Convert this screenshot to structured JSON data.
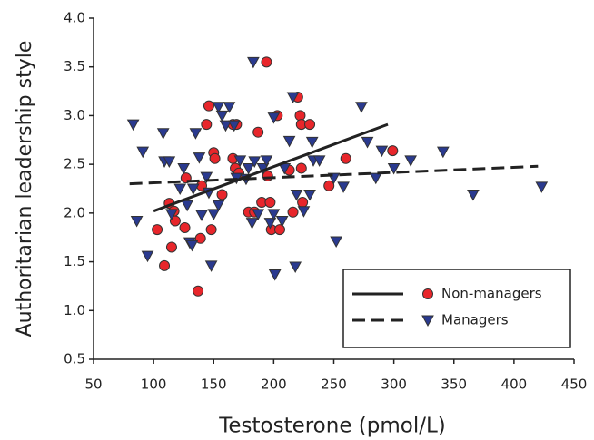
{
  "chart_data": {
    "type": "scatter",
    "x_label": "Testosterone (pmol/L)",
    "y_label": "Authoritarian leadership style",
    "xlim": [
      50,
      450
    ],
    "xticks": [
      50,
      100,
      150,
      200,
      250,
      300,
      350,
      400,
      450
    ],
    "ylim": [
      0.5,
      4.0
    ],
    "yticks": [
      0.5,
      {
        "value": 1,
        "label": "1.0"
      },
      1.5,
      {
        "value": 2,
        "label": "2.0"
      },
      2.5,
      {
        "value": 3,
        "label": "3.0"
      },
      3.5,
      {
        "value": 4,
        "label": "4.0"
      }
    ],
    "legend": "lower right",
    "series": [
      {
        "name": "Non-managers",
        "color": "#e8262b",
        "marker": "circle",
        "line_style": "solid",
        "x": [
          103,
          109,
          113,
          115,
          117,
          118,
          126,
          127,
          137,
          139,
          140,
          144,
          146,
          148,
          150,
          151,
          157,
          166,
          166,
          168,
          169,
          171,
          179,
          184,
          187,
          190,
          194,
          195,
          197,
          198,
          203,
          205,
          213,
          216,
          220,
          222,
          223,
          223,
          224,
          230,
          246,
          260,
          299
        ],
        "values": [
          1.83,
          1.46,
          2.1,
          1.65,
          2.02,
          1.92,
          1.85,
          2.36,
          1.2,
          1.74,
          2.28,
          2.91,
          3.1,
          1.83,
          2.62,
          2.56,
          2.19,
          2.56,
          2.91,
          2.46,
          2.91,
          2.41,
          2.01,
          2.01,
          2.83,
          2.11,
          3.55,
          2.38,
          2.11,
          1.83,
          3.0,
          1.83,
          2.44,
          2.01,
          3.19,
          3.0,
          2.91,
          2.46,
          2.11,
          2.91,
          2.28,
          2.56,
          2.64
        ],
        "trend": {
          "x": [
            100,
            295
          ],
          "values": [
            2.02,
            2.91
          ]
        }
      },
      {
        "name": "Managers",
        "color": "#2a3a8f",
        "marker": "triangle-down",
        "line_style": "dashed",
        "x": [
          83,
          86,
          91,
          95,
          108,
          109,
          113,
          115,
          122,
          125,
          128,
          130,
          132,
          133,
          135,
          138,
          140,
          144,
          146,
          148,
          150,
          154,
          154,
          157,
          160,
          163,
          167,
          169,
          172,
          177,
          179,
          182,
          183,
          184,
          187,
          191,
          194,
          197,
          200,
          200,
          201,
          207,
          209,
          213,
          216,
          218,
          219,
          225,
          230,
          232,
          233,
          238,
          250,
          252,
          258,
          273,
          278,
          285,
          290,
          300,
          314,
          341,
          366,
          423
        ],
        "values": [
          2.91,
          1.92,
          2.63,
          1.56,
          2.82,
          2.53,
          2.53,
          1.99,
          2.25,
          2.46,
          2.08,
          1.7,
          1.67,
          2.25,
          2.82,
          2.57,
          1.98,
          2.37,
          2.21,
          1.46,
          1.99,
          2.08,
          3.09,
          3.0,
          2.9,
          3.09,
          2.9,
          2.36,
          2.54,
          2.35,
          2.46,
          1.9,
          3.55,
          2.53,
          1.99,
          2.46,
          2.54,
          1.9,
          1.99,
          2.98,
          1.37,
          1.92,
          2.46,
          2.74,
          3.19,
          1.45,
          2.19,
          2.02,
          2.19,
          2.73,
          2.54,
          2.54,
          2.36,
          1.71,
          2.27,
          3.09,
          2.73,
          2.36,
          2.64,
          2.46,
          2.54,
          2.63,
          2.19,
          2.27
        ],
        "trend": {
          "x": [
            80,
            420
          ],
          "values": [
            2.3,
            2.48
          ]
        }
      }
    ]
  }
}
